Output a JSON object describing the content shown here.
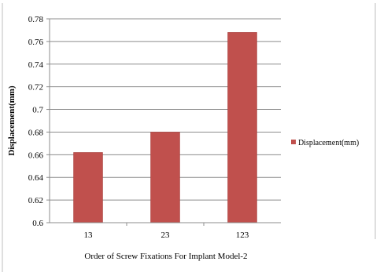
{
  "chart_data": {
    "type": "bar",
    "title": "",
    "xlabel": "Order of Screw Fixations For Implant Model-2",
    "ylabel": "Displacement(mm)",
    "categories": [
      "13",
      "23",
      "123"
    ],
    "series": [
      {
        "name": "Displacement(mm)",
        "values": [
          0.662,
          0.68,
          0.768
        ],
        "color": "#C0504D"
      }
    ],
    "ylim": [
      0.6,
      0.78
    ],
    "yticks": [
      "0.6",
      "0.62",
      "0.64",
      "0.66",
      "0.68",
      "0.7",
      "0.72",
      "0.74",
      "0.76",
      "0.78"
    ],
    "grid": true,
    "legend_position": "right"
  }
}
